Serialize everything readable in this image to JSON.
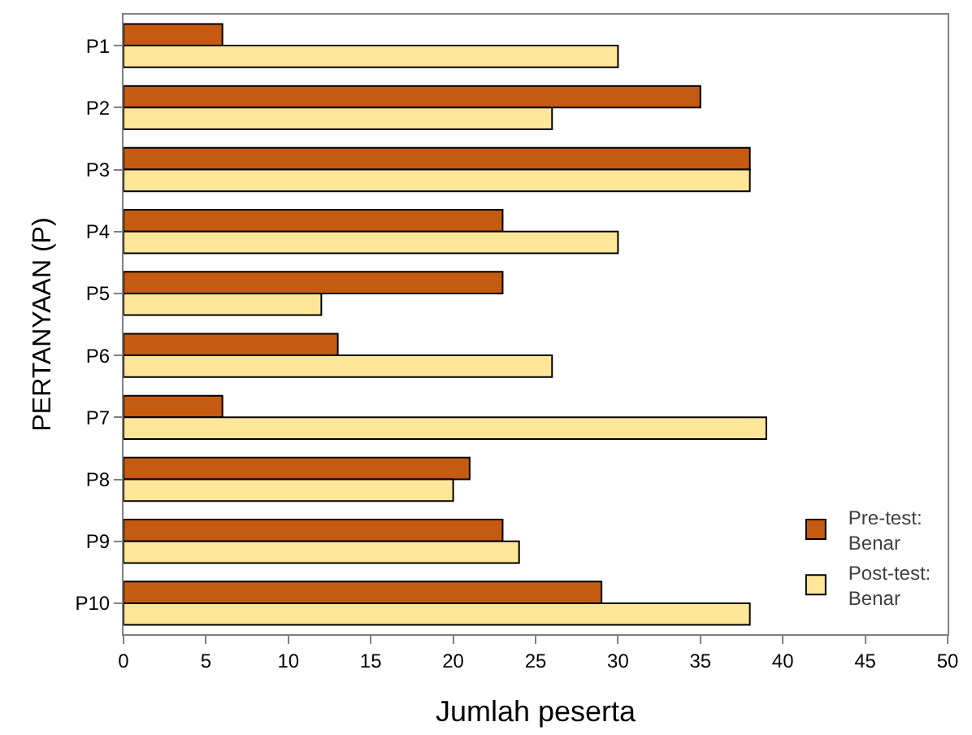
{
  "chart_data": {
    "type": "bar",
    "orientation": "horizontal",
    "xlabel": "Jumlah peserta",
    "ylabel": "PERTANYAAN (P)",
    "categories": [
      "P1",
      "P2",
      "P3",
      "P4",
      "P5",
      "P6",
      "P7",
      "P8",
      "P9",
      "P10"
    ],
    "series": [
      {
        "name": "Pre-test:\nBenar",
        "color": "#c55a11",
        "values": [
          6,
          35,
          38,
          23,
          23,
          13,
          6,
          21,
          23,
          29
        ]
      },
      {
        "name": "Post-test:\nBenar",
        "color": "#ffe699",
        "values": [
          30,
          26,
          38,
          30,
          12,
          26,
          39,
          20,
          24,
          38
        ]
      }
    ],
    "xlim": [
      0,
      50
    ],
    "xticks": [
      0,
      5,
      10,
      15,
      20,
      25,
      30,
      35,
      40,
      45,
      50
    ],
    "legend": "bottom right"
  }
}
